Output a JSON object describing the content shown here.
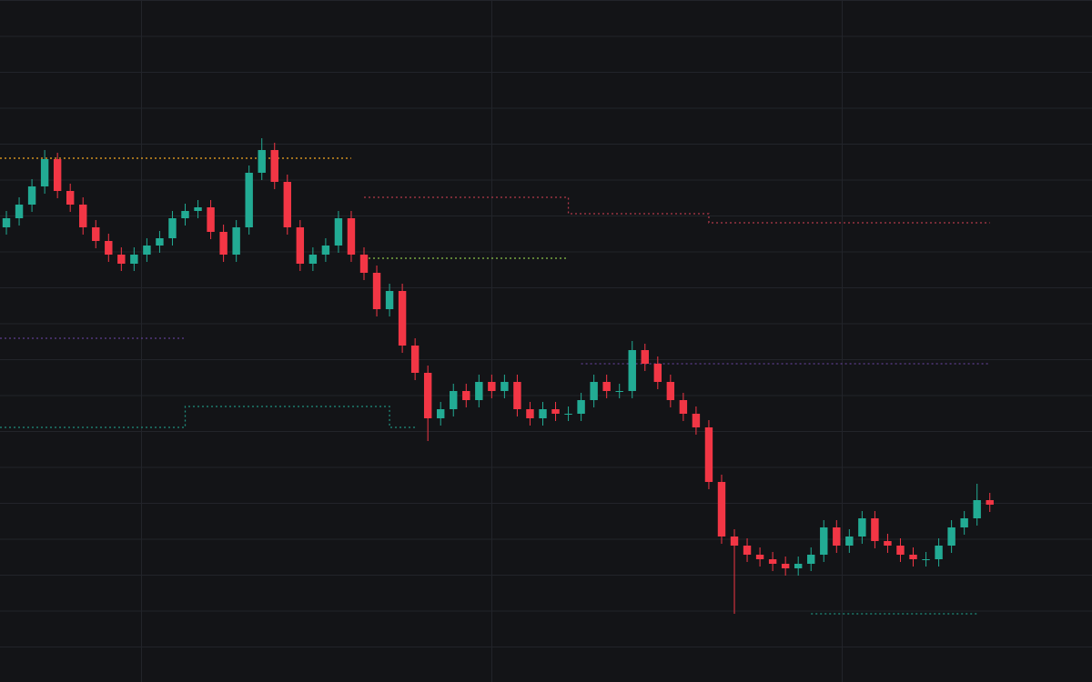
{
  "chart_data": {
    "type": "candlestick",
    "up_color": "#22ab94",
    "down_color": "#f23645",
    "xlim": [
      -0.5,
      85
    ],
    "ylim": [
      0,
      750
    ],
    "open": [
      500,
      510,
      525,
      545,
      575,
      540,
      525,
      500,
      485,
      470,
      460,
      470,
      480,
      488,
      510,
      518,
      522,
      495,
      470,
      500,
      560,
      585,
      550,
      500,
      460,
      470,
      480,
      510,
      470,
      450,
      410,
      430,
      370,
      340,
      290,
      300,
      320,
      310,
      330,
      320,
      330,
      300,
      290,
      300,
      295,
      295,
      310,
      330,
      320,
      320,
      365,
      350,
      330,
      310,
      295,
      280,
      220,
      160,
      150,
      140,
      135,
      130,
      125,
      130,
      140,
      170,
      150,
      160,
      180,
      155,
      150,
      140,
      135,
      135,
      150,
      170,
      180,
      200
    ],
    "high": [
      518,
      533,
      553,
      585,
      582,
      548,
      533,
      508,
      493,
      478,
      478,
      488,
      496,
      518,
      526,
      530,
      530,
      503,
      508,
      568,
      598,
      593,
      558,
      508,
      478,
      488,
      518,
      518,
      478,
      458,
      438,
      438,
      378,
      348,
      308,
      328,
      328,
      338,
      338,
      338,
      338,
      308,
      308,
      308,
      303,
      318,
      338,
      338,
      328,
      375,
      372,
      358,
      338,
      318,
      303,
      288,
      228,
      168,
      158,
      148,
      143,
      138,
      138,
      148,
      178,
      178,
      168,
      188,
      188,
      163,
      158,
      148,
      143,
      158,
      178,
      188,
      218,
      208
    ],
    "low": [
      492,
      502,
      517,
      537,
      532,
      517,
      492,
      477,
      462,
      452,
      452,
      462,
      472,
      480,
      502,
      510,
      487,
      462,
      462,
      492,
      552,
      542,
      492,
      452,
      452,
      462,
      472,
      462,
      442,
      402,
      402,
      362,
      332,
      265,
      282,
      292,
      302,
      302,
      312,
      312,
      292,
      282,
      282,
      287,
      287,
      287,
      302,
      312,
      312,
      312,
      342,
      322,
      302,
      287,
      272,
      212,
      152,
      75,
      132,
      127,
      122,
      117,
      117,
      122,
      132,
      142,
      142,
      152,
      147,
      142,
      132,
      127,
      127,
      127,
      142,
      162,
      172,
      187
    ],
    "close": [
      510,
      525,
      545,
      575,
      540,
      525,
      500,
      485,
      470,
      460,
      470,
      480,
      488,
      510,
      518,
      522,
      495,
      470,
      500,
      560,
      585,
      550,
      500,
      460,
      470,
      480,
      510,
      470,
      450,
      410,
      430,
      370,
      340,
      290,
      300,
      320,
      310,
      330,
      320,
      330,
      300,
      290,
      300,
      295,
      295,
      310,
      330,
      320,
      320,
      365,
      350,
      330,
      310,
      295,
      280,
      220,
      160,
      150,
      140,
      135,
      130,
      125,
      130,
      140,
      170,
      150,
      160,
      180,
      155,
      150,
      140,
      135,
      135,
      150,
      170,
      180,
      200,
      195
    ],
    "levels": [
      {
        "color": "#f5a623",
        "x": [
          -0.5,
          27
        ],
        "values": [
          576,
          576
        ]
      },
      {
        "color": "#b2394a",
        "x": [
          28,
          44,
          44,
          55,
          55,
          77
        ],
        "values": [
          533,
          533,
          515,
          515,
          505,
          505
        ]
      },
      {
        "color": "#8bc34a",
        "x": [
          28,
          44
        ],
        "values": [
          466,
          466
        ]
      },
      {
        "color": "#1f8f7e",
        "x": [
          -0.5,
          14,
          14,
          30,
          30,
          32
        ],
        "values": [
          280,
          280,
          303,
          303,
          280,
          280
        ]
      },
      {
        "color": "#5e3f8f",
        "x": [
          -0.5,
          14
        ],
        "values": [
          378,
          378
        ]
      },
      {
        "color": "#5e3f8f",
        "x": [
          45,
          77
        ],
        "values": [
          350,
          350
        ]
      },
      {
        "color": "#1f8f7e",
        "x": [
          63,
          76
        ],
        "values": [
          75,
          75
        ]
      }
    ]
  }
}
